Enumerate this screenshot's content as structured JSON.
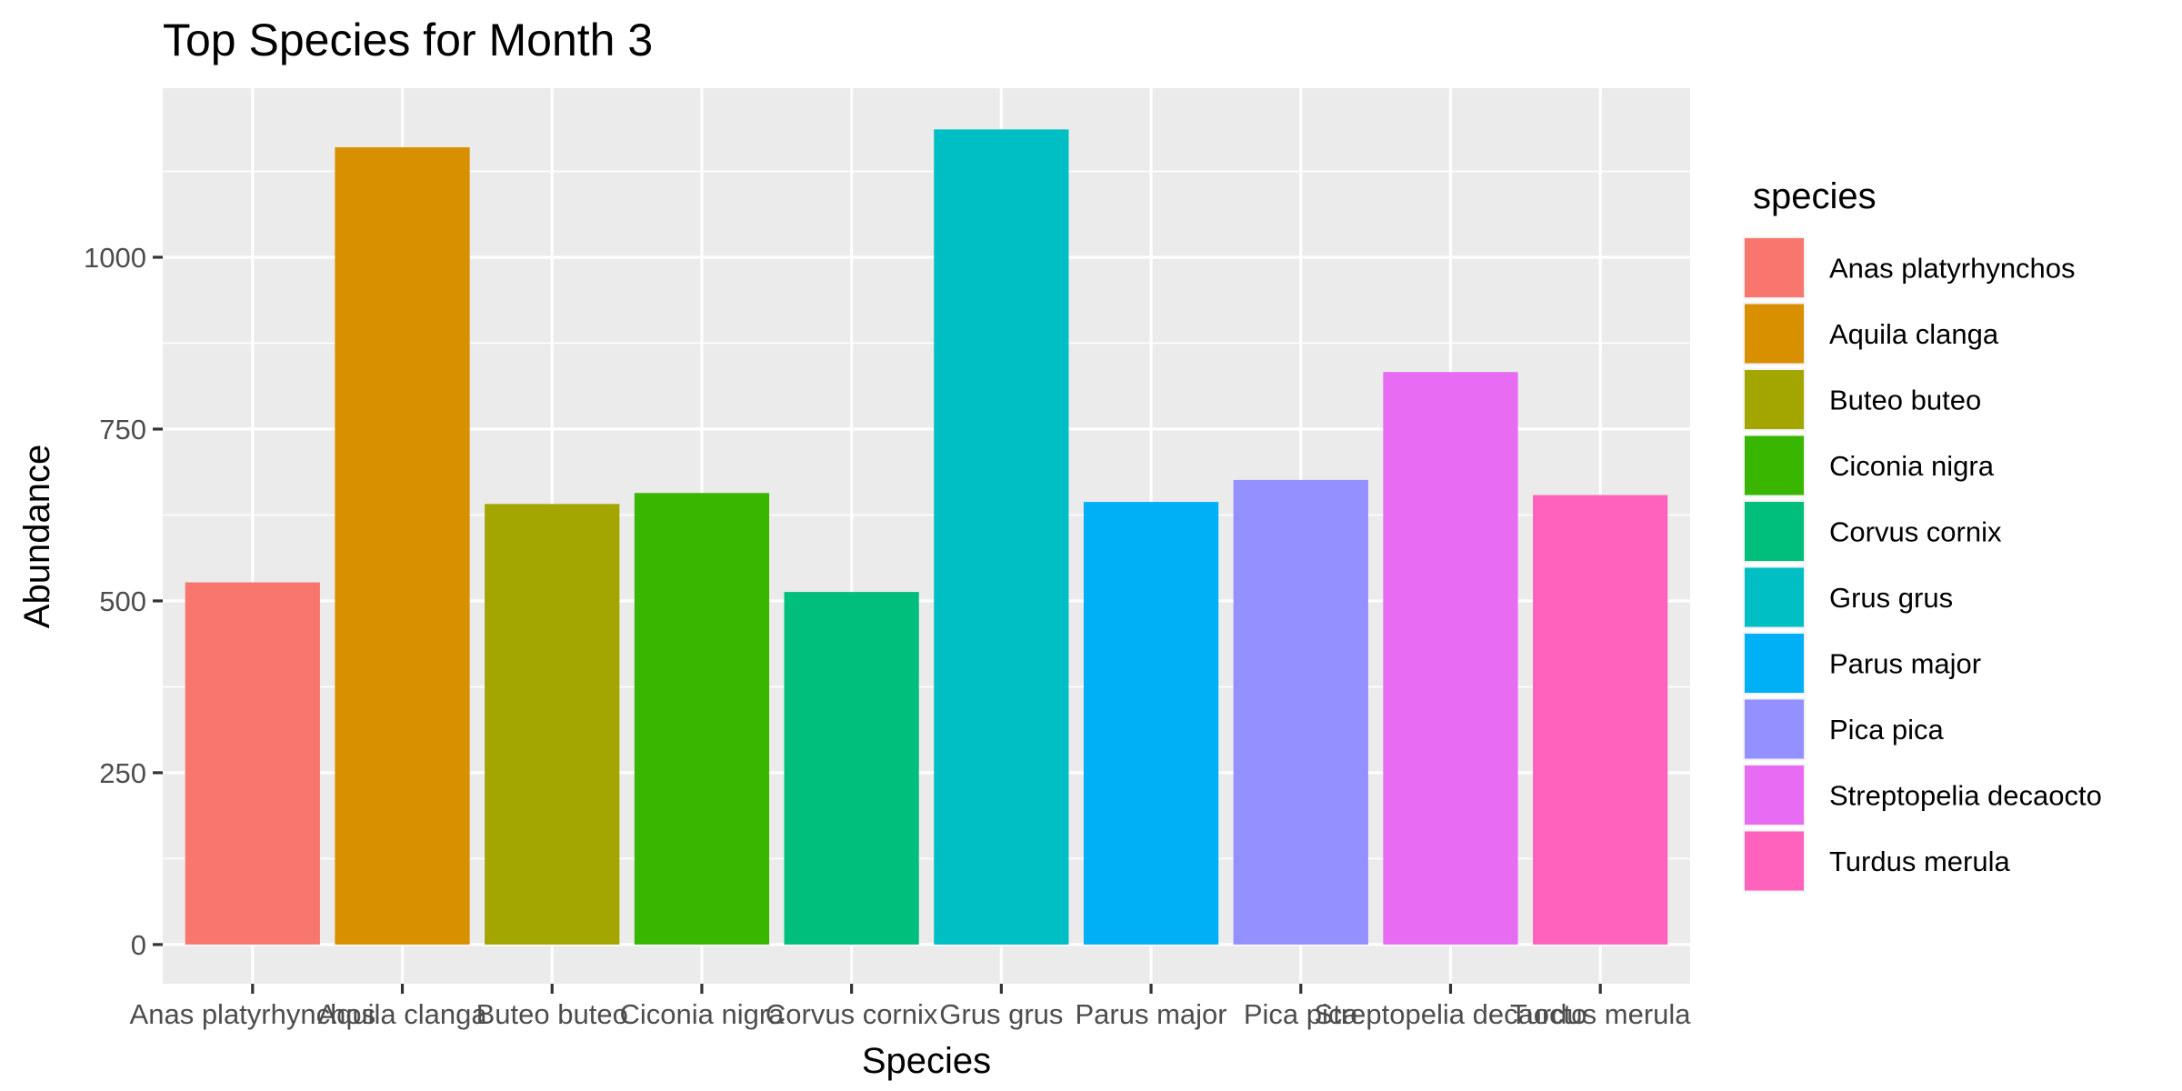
{
  "chart_data": {
    "type": "bar",
    "title": "Top Species for Month 3",
    "xlabel": "Species",
    "ylabel": "Abundance",
    "categories": [
      "Anas platyrhynchos",
      "Aquila clanga",
      "Buteo buteo",
      "Ciconia nigra",
      "Corvus cornix",
      "Grus grus",
      "Parus major",
      "Pica pica",
      "Streptopelia decaocto",
      "Turdus merula"
    ],
    "values": [
      527,
      1160,
      641,
      657,
      513,
      1186,
      644,
      676,
      833,
      654
    ],
    "colors": [
      "#F8766D",
      "#D89000",
      "#A3A500",
      "#39B600",
      "#00BF7D",
      "#00BFC4",
      "#00B0F6",
      "#9590FF",
      "#E76BF3",
      "#FF62BC"
    ],
    "yticks": [
      0,
      250,
      500,
      750,
      1000
    ],
    "ylim": [
      -57,
      1246
    ],
    "grid": true,
    "legend": {
      "title": "species",
      "position": "right"
    }
  }
}
